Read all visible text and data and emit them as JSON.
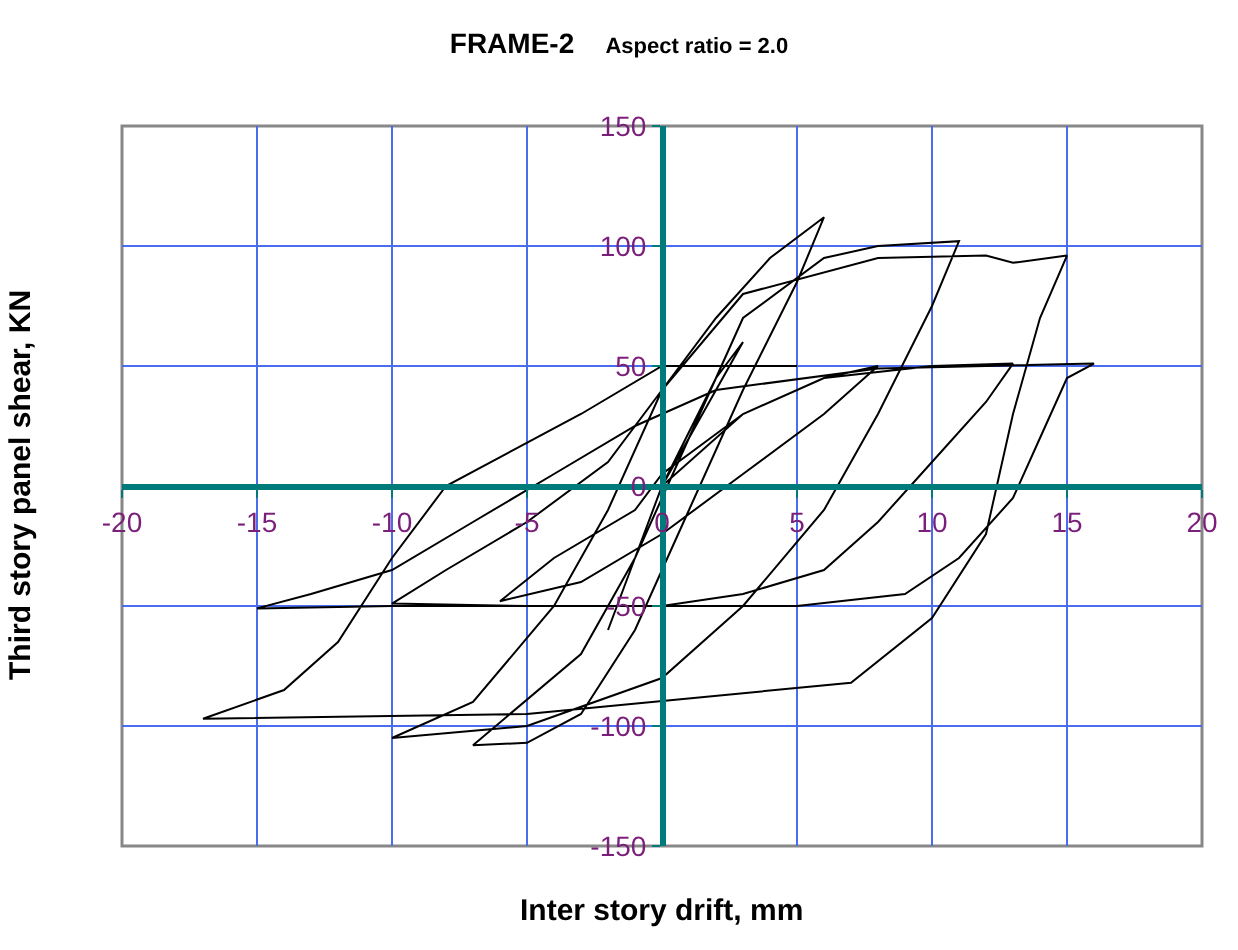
{
  "chart_data": {
    "type": "line",
    "title": "FRAME-2",
    "subtitle": "Aspect ratio = 2.0",
    "xlabel": "Inter story drift, mm",
    "ylabel": "Third story panel shear, KN",
    "xlim": [
      -20,
      20
    ],
    "xticks": [
      -20,
      -15,
      -10,
      -5,
      0,
      5,
      10,
      15,
      20
    ],
    "ylim": [
      -150,
      150
    ],
    "yticks": [
      -150,
      -100,
      -50,
      0,
      50,
      100,
      150
    ],
    "grid": true,
    "marker": "none",
    "line_style": "solid",
    "series": [
      {
        "color": "#000000",
        "x": [
          0,
          2,
          3,
          1,
          0,
          -1,
          -2,
          -1,
          0,
          3,
          6,
          8,
          6,
          3,
          0,
          -3,
          -6,
          -4,
          -1,
          0,
          3,
          6,
          10,
          13,
          12,
          10,
          8,
          6,
          3,
          0,
          -10,
          -15,
          -13,
          -10,
          -7,
          -4,
          -1,
          2,
          8,
          16,
          15,
          14,
          13,
          11,
          9,
          5,
          -5,
          -10,
          -8,
          -5,
          -2,
          0,
          2,
          4,
          6,
          5,
          3,
          1,
          -1,
          -3,
          -5,
          -7,
          -3,
          -1,
          1,
          3,
          6,
          8,
          11,
          10,
          8,
          6,
          3,
          0,
          -5,
          -10,
          -7,
          -4,
          -2,
          0,
          3,
          8,
          12,
          13,
          15,
          14,
          13,
          12,
          10,
          7,
          -5,
          -17,
          -14,
          -12,
          -10,
          -8,
          -3,
          0,
          5
        ],
        "values": [
          0,
          45,
          60,
          20,
          0,
          -30,
          -60,
          -30,
          0,
          30,
          45,
          50,
          30,
          5,
          -20,
          -40,
          -48,
          -30,
          -10,
          5,
          30,
          45,
          50,
          51,
          35,
          10,
          -15,
          -35,
          -45,
          -50,
          -50,
          -51,
          -45,
          -35,
          -15,
          5,
          25,
          40,
          49,
          51,
          45,
          20,
          -5,
          -30,
          -45,
          -50,
          -50,
          -49,
          -35,
          -15,
          10,
          40,
          70,
          95,
          112,
          85,
          40,
          -10,
          -60,
          -95,
          -107,
          -108,
          -70,
          -30,
          20,
          70,
          95,
          100,
          102,
          75,
          30,
          -10,
          -50,
          -80,
          -100,
          -105,
          -90,
          -50,
          -10,
          40,
          80,
          95,
          96,
          93,
          96,
          70,
          30,
          -20,
          -55,
          -82,
          -95,
          -97,
          -85,
          -65,
          -30,
          0,
          30,
          50,
          50
        ]
      }
    ]
  }
}
